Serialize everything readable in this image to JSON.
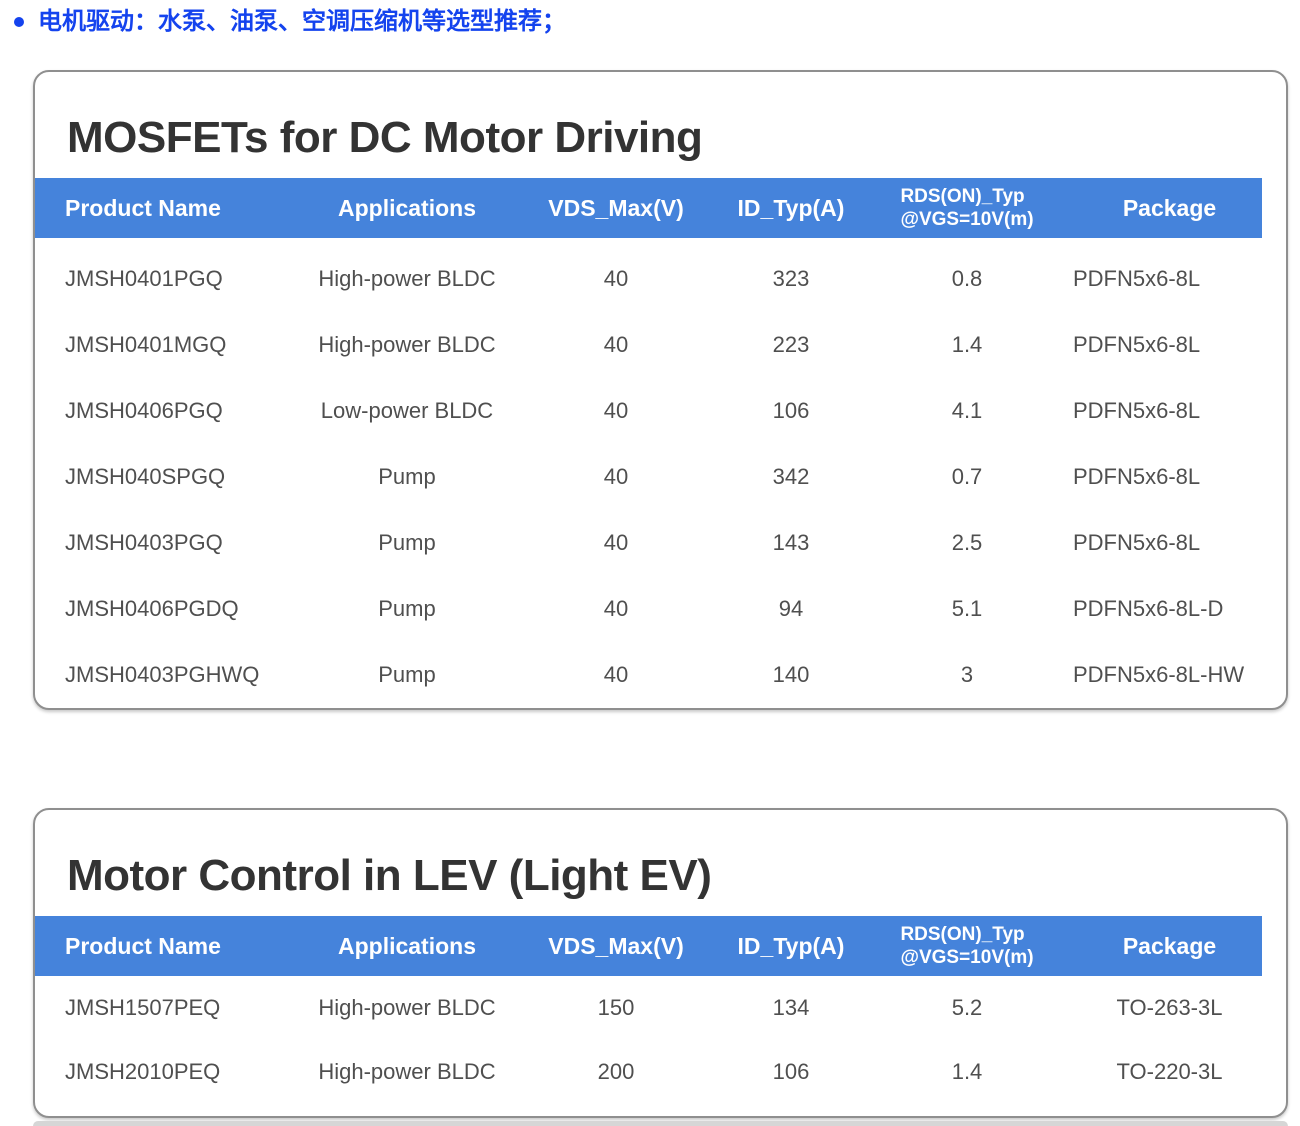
{
  "intro": {
    "bullet_text": "电机驱动：水泵、油泵、空调压缩机等选型推荐；"
  },
  "colors": {
    "accent_blue": "#1443EE",
    "table_header_blue": "#4583DB",
    "card_border_gray": "#8F8F8F",
    "title_text": "#333333",
    "body_text": "#4F4F4F"
  },
  "table1": {
    "title": "MOSFETs for DC Motor Driving",
    "headers": {
      "product": "Product Name",
      "applications": "Applications",
      "vds": "VDS_Max(V)",
      "id": "ID_Typ(A)",
      "rds_line1": "RDS(ON)_Typ",
      "rds_line2": "@VGS=10V(m)",
      "package": "Package"
    },
    "rows": [
      {
        "product": "JMSH0401PGQ",
        "application": "High-power BLDC",
        "vds": "40",
        "id": "323",
        "rds": "0.8",
        "package": "PDFN5x6-8L"
      },
      {
        "product": "JMSH0401MGQ",
        "application": "High-power BLDC",
        "vds": "40",
        "id": "223",
        "rds": "1.4",
        "package": "PDFN5x6-8L"
      },
      {
        "product": "JMSH0406PGQ",
        "application": "Low-power BLDC",
        "vds": "40",
        "id": "106",
        "rds": "4.1",
        "package": "PDFN5x6-8L"
      },
      {
        "product": "JMSH040SPGQ",
        "application": "Pump",
        "vds": "40",
        "id": "342",
        "rds": "0.7",
        "package": "PDFN5x6-8L"
      },
      {
        "product": "JMSH0403PGQ",
        "application": "Pump",
        "vds": "40",
        "id": "143",
        "rds": "2.5",
        "package": "PDFN5x6-8L"
      },
      {
        "product": "JMSH0406PGDQ",
        "application": "Pump",
        "vds": "40",
        "id": "94",
        "rds": "5.1",
        "package": "PDFN5x6-8L-D"
      },
      {
        "product": "JMSH0403PGHWQ",
        "application": "Pump",
        "vds": "40",
        "id": "140",
        "rds": "3",
        "package": "PDFN5x6-8L-HW"
      }
    ]
  },
  "table2": {
    "title": "Motor Control in LEV (Light EV)",
    "headers": {
      "product": "Product Name",
      "applications": "Applications",
      "vds": "VDS_Max(V)",
      "id": "ID_Typ(A)",
      "rds_line1": "RDS(ON)_Typ",
      "rds_line2": "@VGS=10V(m)",
      "package": "Package"
    },
    "rows": [
      {
        "product": "JMSH1507PEQ",
        "application": "High-power BLDC",
        "vds": "150",
        "id": "134",
        "rds": "5.2",
        "package": "TO-263-3L"
      },
      {
        "product": "JMSH2010PEQ",
        "application": "High-power BLDC",
        "vds": "200",
        "id": "106",
        "rds": "1.4",
        "package": "TO-220-3L"
      }
    ]
  }
}
